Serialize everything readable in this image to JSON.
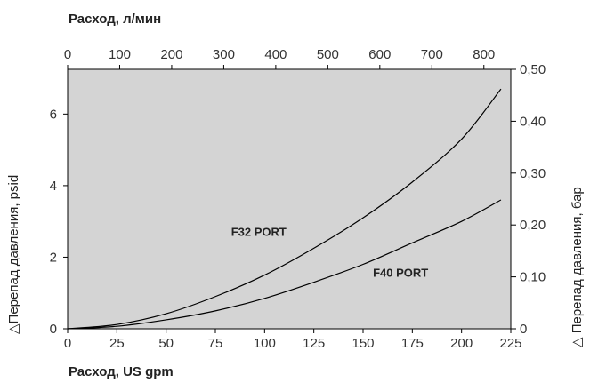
{
  "chart_data": {
    "type": "line",
    "colors": {
      "plot_background": "#d4d4d4",
      "line": "#000000"
    },
    "grid": false,
    "top_axis_title": "Расход, л/мин",
    "bottom_axis_title": "Расход, US gpm",
    "left_axis_title": "△Перепад давления, psid",
    "right_axis_title": "△ Перепад давления, бар",
    "x": {
      "label": "Расход, US gpm",
      "lim": [
        0,
        225
      ],
      "ticks": [
        0,
        25,
        50,
        75,
        100,
        125,
        150,
        175,
        200,
        225
      ],
      "tick_labels": [
        "0",
        "25",
        "50",
        "75",
        "100",
        "125",
        "150",
        "175",
        "200",
        "225"
      ]
    },
    "x_top": {
      "label": "Расход, л/мин",
      "lim": [
        0,
        851.7
      ],
      "ticks": [
        0,
        100,
        200,
        300,
        400,
        500,
        600,
        700,
        800
      ],
      "tick_labels": [
        "0",
        "100",
        "200",
        "300",
        "400",
        "500",
        "600",
        "700",
        "800"
      ]
    },
    "y": {
      "label": "△Перепад давления, psid",
      "lim": [
        0,
        7.25
      ],
      "ticks": [
        0,
        2,
        4,
        6
      ],
      "tick_labels": [
        "0",
        "2",
        "4",
        "6"
      ]
    },
    "y_right": {
      "label": "△ Перепад давления, бар",
      "lim": [
        0,
        0.5
      ],
      "ticks": [
        0,
        0.1,
        0.2,
        0.3,
        0.4,
        0.5
      ],
      "tick_labels": [
        "0",
        "0,10",
        "0,20",
        "0,30",
        "0,40",
        "0,50"
      ]
    },
    "series": [
      {
        "name": "F32 PORT",
        "x": [
          0,
          25,
          50,
          75,
          100,
          125,
          150,
          175,
          200,
          220
        ],
        "y": [
          0,
          0.12,
          0.42,
          0.9,
          1.5,
          2.25,
          3.1,
          4.1,
          5.3,
          6.7
        ]
      },
      {
        "name": "F40 PORT",
        "x": [
          0,
          25,
          50,
          75,
          100,
          125,
          150,
          175,
          200,
          220
        ],
        "y": [
          0,
          0.07,
          0.25,
          0.5,
          0.85,
          1.3,
          1.8,
          2.4,
          3.0,
          3.6
        ]
      }
    ]
  }
}
